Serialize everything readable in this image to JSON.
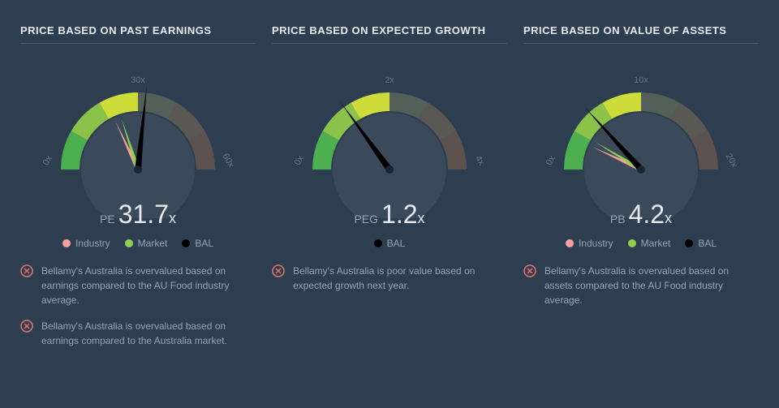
{
  "colors": {
    "background": "#2d3e50",
    "title_text": "#e8eaed",
    "muted_text": "#9aa5b1",
    "divider": "#4a5a6a",
    "tick_text": "#6b7a8a",
    "industry": "#f5a09a",
    "market": "#8fd14f",
    "bal": "#000000",
    "note_icon_ring": "#e8736b",
    "note_icon_x": "#e8736b",
    "arc_seg1": "#4caf50",
    "arc_seg2": "#8bc34a",
    "arc_seg3": "#cddc39",
    "arc_seg4": "#545f5a",
    "arc_seg5": "#5a5852",
    "arc_seg6": "#5e524e",
    "face": "#3a4a5a"
  },
  "panels": [
    {
      "title": "PRICE BASED ON PAST EARNINGS",
      "tick_min": "0x",
      "tick_mid": "30x",
      "tick_max": "60x",
      "metric_label": "PE",
      "value": "31.7",
      "value_suffix": "x",
      "legend": [
        {
          "label": "Industry",
          "color": "#f5a09a"
        },
        {
          "label": "Market",
          "color": "#8fd14f"
        },
        {
          "label": "BAL",
          "color": "#000000"
        }
      ],
      "needles": [
        {
          "kind": "thin",
          "color": "#f5a09a",
          "angle_deg": 245
        },
        {
          "kind": "thin",
          "color": "#8fd14f",
          "angle_deg": 252
        },
        {
          "kind": "thick",
          "color": "#000000",
          "angle_deg": 276
        }
      ],
      "notes": [
        "Bellamy's Australia is overvalued based on earnings compared to the AU Food industry average.",
        "Bellamy's Australia is overvalued based on earnings compared to the Australia market."
      ]
    },
    {
      "title": "PRICE BASED ON EXPECTED GROWTH",
      "tick_min": "0x",
      "tick_mid": "2x",
      "tick_max": "4x",
      "metric_label": "PEG",
      "value": "1.2",
      "value_suffix": "x",
      "legend": [
        {
          "label": "BAL",
          "color": "#000000"
        }
      ],
      "needles": [
        {
          "kind": "thick",
          "color": "#000000",
          "angle_deg": 234
        }
      ],
      "notes": [
        "Bellamy's Australia is poor value based on expected growth next year."
      ]
    },
    {
      "title": "PRICE BASED ON VALUE OF ASSETS",
      "tick_min": "0x",
      "tick_mid": "10x",
      "tick_max": "20x",
      "metric_label": "PB",
      "value": "4.2",
      "value_suffix": "x",
      "legend": [
        {
          "label": "Industry",
          "color": "#f5a09a"
        },
        {
          "label": "Market",
          "color": "#8fd14f"
        },
        {
          "label": "BAL",
          "color": "#000000"
        }
      ],
      "needles": [
        {
          "kind": "thin",
          "color": "#f5a09a",
          "angle_deg": 205
        },
        {
          "kind": "thin",
          "color": "#8fd14f",
          "angle_deg": 211
        },
        {
          "kind": "thick",
          "color": "#000000",
          "angle_deg": 228
        }
      ],
      "notes": [
        "Bellamy's Australia is overvalued based on assets compared to the AU Food industry average."
      ]
    }
  ]
}
